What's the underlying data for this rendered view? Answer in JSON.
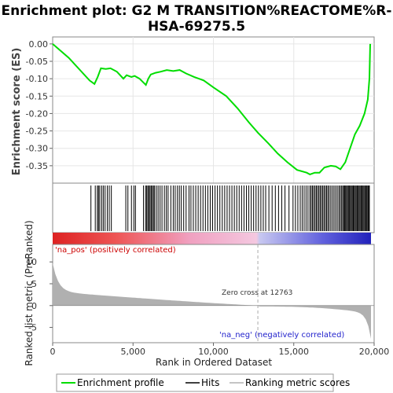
{
  "chart_data": {
    "type": "line",
    "title_line1": "Enrichment plot: G2 M TRANSITION%REACTOME%R-",
    "title_line2": "HSA-69275.5",
    "es_ylabel": "Enrichment score (ES)",
    "metric_ylabel": "Ranked list metric (PreRanked)",
    "xlabel": "Rank in Ordered Dataset",
    "x_range": [
      0,
      19800
    ],
    "es_ylim": [
      -0.4,
      0.02
    ],
    "es_ticks": [
      "0.00",
      "-0.05",
      "-0.10",
      "-0.15",
      "-0.20",
      "-0.25",
      "-0.30",
      "-0.35"
    ],
    "es_tick_values": [
      0.0,
      -0.05,
      -0.1,
      -0.15,
      -0.2,
      -0.25,
      -0.3,
      -0.35
    ],
    "metric_ylim": [
      -8.5,
      14
    ],
    "metric_ticks": [
      "10",
      "5",
      "0",
      "-5"
    ],
    "metric_tick_values": [
      10,
      5,
      0,
      -5
    ],
    "x_ticks": [
      "0",
      "5,000",
      "10,000",
      "15,000",
      "20,000"
    ],
    "x_tick_values": [
      0,
      5000,
      10000,
      15000,
      20000
    ],
    "pos_label": "'na_pos' (positively correlated)",
    "neg_label": "'na_neg' (negatively correlated)",
    "zero_cross_label": "Zero cross at 12763",
    "zero_cross": 12763,
    "legend": [
      "Enrichment profile",
      "Hits",
      "Ranking metric scores"
    ],
    "colors": {
      "profile": "#00dd00",
      "hits": "#000000",
      "metric": "#b0b0b0"
    },
    "es_profile": {
      "x": [
        0,
        1000,
        2300,
        2600,
        2800,
        3000,
        3300,
        3600,
        4000,
        4400,
        4600,
        4900,
        5100,
        5400,
        5800,
        5950,
        6100,
        6400,
        6700,
        7100,
        7500,
        7900,
        8300,
        8800,
        9400,
        10000,
        10800,
        11500,
        12200,
        12763,
        13400,
        14000,
        14600,
        15200,
        15800,
        16000,
        16300,
        16600,
        16900,
        17300,
        17600,
        17900,
        18200,
        18500,
        18800,
        19100,
        19400,
        19600,
        19700,
        19750
      ],
      "y": [
        0.0,
        -0.04,
        -0.105,
        -0.115,
        -0.095,
        -0.07,
        -0.072,
        -0.07,
        -0.08,
        -0.1,
        -0.09,
        -0.095,
        -0.092,
        -0.1,
        -0.118,
        -0.1,
        -0.088,
        -0.083,
        -0.08,
        -0.075,
        -0.078,
        -0.075,
        -0.085,
        -0.095,
        -0.105,
        -0.125,
        -0.15,
        -0.185,
        -0.225,
        -0.255,
        -0.285,
        -0.315,
        -0.34,
        -0.362,
        -0.37,
        -0.375,
        -0.37,
        -0.37,
        -0.355,
        -0.35,
        -0.352,
        -0.36,
        -0.34,
        -0.3,
        -0.26,
        -0.235,
        -0.2,
        -0.16,
        -0.1,
        0.0
      ]
    },
    "hits": [
      2380,
      2650,
      2780,
      2850,
      2930,
      3050,
      3150,
      3260,
      3400,
      3520,
      3650,
      4550,
      4680,
      4900,
      5050,
      5150,
      5650,
      5780,
      5850,
      5920,
      5990,
      6060,
      6130,
      6200,
      6270,
      6340,
      6450,
      6560,
      6680,
      6800,
      6950,
      7070,
      7180,
      7350,
      7500,
      7620,
      7760,
      7880,
      8000,
      8150,
      8300,
      8480,
      8600,
      8750,
      8900,
      9050,
      9200,
      9350,
      9500,
      9650,
      9800,
      9950,
      10100,
      10250,
      10400,
      10550,
      10700,
      10850,
      11000,
      11150,
      11300,
      11450,
      11600,
      11750,
      11900,
      12050,
      12200,
      12350,
      12500,
      12650,
      12800,
      12950,
      13100,
      13250,
      13450,
      13650,
      13850,
      14050,
      14250,
      14450,
      14700,
      14950,
      15100,
      15250,
      15400,
      15520,
      15640,
      15760,
      15880,
      16000,
      16080,
      16160,
      16240,
      16320,
      16400,
      16480,
      16560,
      16640,
      16720,
      16800,
      16880,
      16960,
      17040,
      17120,
      17200,
      17300,
      17400,
      17500,
      17600,
      17700,
      17800,
      17880,
      17960,
      18040,
      18100,
      18160,
      18220,
      18280,
      18340,
      18400,
      18460,
      18520,
      18580,
      18640,
      18700,
      18760,
      18820,
      18880,
      18940,
      19000,
      19060,
      19120,
      19180,
      19240,
      19300,
      19360,
      19420,
      19480,
      19540,
      19600,
      19650,
      19700
    ]
  }
}
